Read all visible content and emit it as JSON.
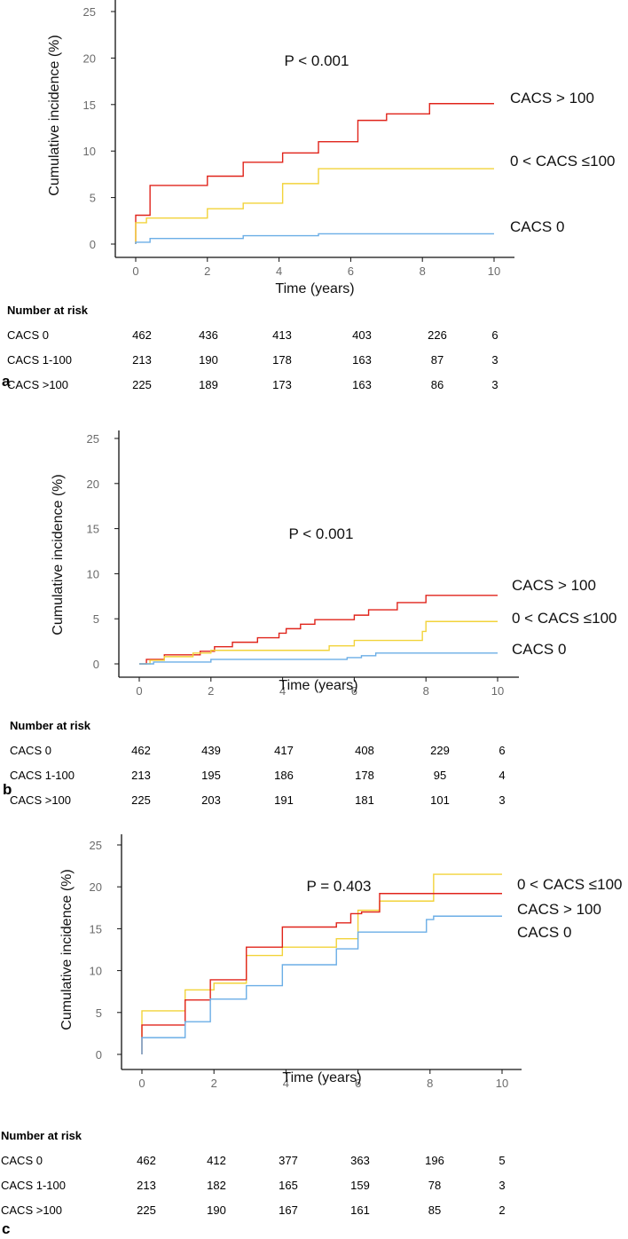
{
  "chart_data": [
    {
      "type": "line",
      "panel": "a",
      "xlabel": "Time (years)",
      "ylabel": "Cumulative incidence (%)",
      "xlim": [
        0,
        10
      ],
      "ylim": [
        0,
        25
      ],
      "xticks": [
        0,
        2,
        4,
        6,
        8,
        10
      ],
      "yticks": [
        0,
        5,
        10,
        15,
        20,
        25
      ],
      "annotation": "P < 0.001",
      "series": [
        {
          "name": "CACS > 100",
          "color": "#e0241b",
          "x": [
            0,
            0,
            0.4,
            2,
            3,
            4.1,
            5.1,
            6.2,
            7,
            8.2,
            10
          ],
          "y": [
            0,
            3.1,
            6.3,
            7.3,
            8.8,
            9.8,
            11.0,
            13.3,
            14.0,
            15.1,
            15.1
          ]
        },
        {
          "name": "0 < CACS ≤100",
          "color": "#f2d33a",
          "x": [
            0,
            0,
            0.3,
            2,
            3,
            4.1,
            5.1,
            10
          ],
          "y": [
            0,
            2.3,
            2.8,
            3.8,
            4.4,
            6.5,
            8.1,
            8.1
          ]
        },
        {
          "name": "CACS 0",
          "color": "#6baee6",
          "x": [
            0,
            0,
            0.4,
            3,
            5.1,
            10
          ],
          "y": [
            0,
            0.2,
            0.6,
            0.9,
            1.1,
            1.1
          ]
        }
      ],
      "risk_table": {
        "title": "Number at risk",
        "times": [
          0,
          2,
          4,
          6,
          8,
          10
        ],
        "rows": [
          {
            "label": "CACS 0",
            "values": [
              "462",
              "436",
              "413",
              "403",
              "226",
              "6"
            ]
          },
          {
            "label": "CACS 1-100",
            "values": [
              "213",
              "190",
              "178",
              "163",
              "87",
              "3"
            ]
          },
          {
            "label": "CACS >100",
            "values": [
              "225",
              "189",
              "173",
              "163",
              "86",
              "3"
            ]
          }
        ]
      },
      "letter": "a"
    },
    {
      "type": "line",
      "panel": "b",
      "xlabel": "Time (years)",
      "ylabel": "Cumulative incidence (%)",
      "xlim": [
        0,
        10
      ],
      "ylim": [
        0,
        25
      ],
      "xticks": [
        0,
        2,
        4,
        6,
        8,
        10
      ],
      "yticks": [
        0,
        5,
        10,
        15,
        20,
        25
      ],
      "annotation": "P < 0.001",
      "series": [
        {
          "name": "CACS > 100",
          "color": "#e0241b",
          "x": [
            0,
            0.2,
            0.7,
            1.7,
            2.1,
            2.6,
            3.3,
            3.9,
            4.1,
            4.5,
            4.9,
            6,
            6.4,
            7.2,
            8,
            10
          ],
          "y": [
            0,
            0.5,
            1.0,
            1.4,
            1.9,
            2.4,
            2.9,
            3.4,
            3.9,
            4.4,
            4.9,
            5.4,
            6.0,
            6.8,
            7.6,
            7.6
          ]
        },
        {
          "name": "0 < CACS ≤100",
          "color": "#f2d33a",
          "x": [
            0,
            0.3,
            0.7,
            1.5,
            2,
            5.3,
            6,
            7.9,
            8,
            10
          ],
          "y": [
            0,
            0.4,
            0.8,
            1.2,
            1.5,
            2.0,
            2.6,
            3.6,
            4.7,
            4.7
          ]
        },
        {
          "name": "CACS 0",
          "color": "#6baee6",
          "x": [
            0,
            0.4,
            2,
            5.8,
            6.2,
            6.6,
            10
          ],
          "y": [
            0,
            0.2,
            0.5,
            0.7,
            0.9,
            1.2,
            1.2
          ]
        }
      ],
      "risk_table": {
        "title": "Number at risk",
        "times": [
          0,
          2,
          4,
          6,
          8,
          10
        ],
        "rows": [
          {
            "label": "CACS 0",
            "values": [
              "462",
              "439",
              "417",
              "408",
              "229",
              "6"
            ]
          },
          {
            "label": "CACS 1-100",
            "values": [
              "213",
              "195",
              "186",
              "178",
              "95",
              "4"
            ]
          },
          {
            "label": "CACS >100",
            "values": [
              "225",
              "203",
              "191",
              "181",
              "101",
              "3"
            ]
          }
        ]
      },
      "letter": "b"
    },
    {
      "type": "line",
      "panel": "c",
      "xlabel": "Time (years)",
      "ylabel": "Cumulative incidence (%)",
      "xlim": [
        0,
        10
      ],
      "ylim": [
        0,
        25
      ],
      "xticks": [
        0,
        2,
        4,
        6,
        8,
        10
      ],
      "yticks": [
        0,
        5,
        10,
        15,
        20,
        25
      ],
      "annotation": "P = 0.403",
      "series": [
        {
          "name": "0 < CACS ≤100",
          "color": "#f2d33a",
          "x": [
            0,
            0,
            1.2,
            2,
            2.9,
            3.9,
            5.4,
            6,
            6.6,
            8,
            8.1,
            10
          ],
          "y": [
            0,
            5.2,
            7.7,
            8.5,
            11.8,
            12.8,
            13.8,
            17.2,
            18.3,
            18.3,
            21.5,
            21.5
          ]
        },
        {
          "name": "CACS > 100",
          "color": "#e0241b",
          "x": [
            0,
            0,
            1.2,
            1.9,
            2.9,
            3.9,
            5.4,
            5.8,
            6.1,
            6.6,
            10
          ],
          "y": [
            0,
            3.5,
            6.5,
            8.9,
            12.8,
            15.2,
            15.7,
            16.8,
            17.0,
            19.2,
            19.2
          ]
        },
        {
          "name": "CACS 0",
          "color": "#6baee6",
          "x": [
            0,
            0,
            1.2,
            1.9,
            2.9,
            3.9,
            5.4,
            6,
            7.9,
            8.1,
            10
          ],
          "y": [
            0,
            2.0,
            3.9,
            6.6,
            8.2,
            10.7,
            12.6,
            14.6,
            16.1,
            16.5,
            16.5
          ]
        }
      ],
      "risk_table": {
        "title": "Number at risk",
        "times": [
          0,
          2,
          4,
          6,
          8,
          10
        ],
        "rows": [
          {
            "label": "CACS 0",
            "values": [
              "462",
              "412",
              "377",
              "363",
              "196",
              "5"
            ]
          },
          {
            "label": "CACS 1-100",
            "values": [
              "213",
              "182",
              "165",
              "159",
              "78",
              "3"
            ]
          },
          {
            "label": "CACS >100",
            "values": [
              "225",
              "190",
              "167",
              "161",
              "85",
              "2"
            ]
          }
        ]
      },
      "letter": "c"
    }
  ]
}
